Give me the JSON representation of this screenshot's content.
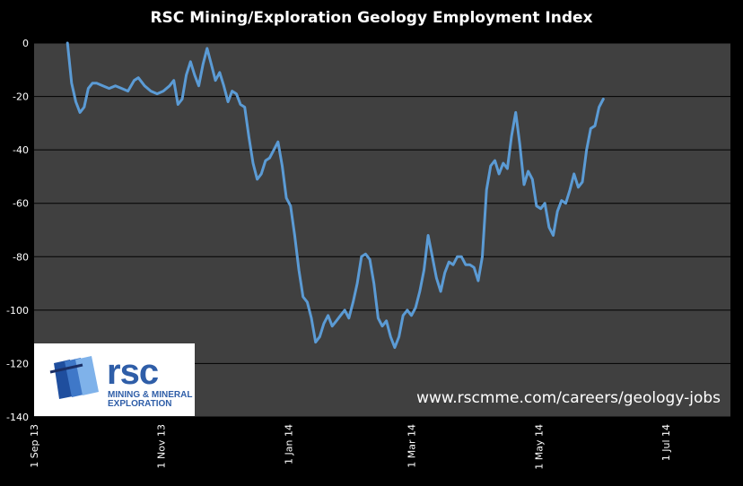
{
  "chart_data": {
    "type": "line",
    "title": "RSC Mining/Exploration Geology Employment Index",
    "xlabel": "",
    "ylabel": "",
    "ylim": [
      -140,
      0
    ],
    "yticks": [
      0,
      -20,
      -40,
      -60,
      -80,
      -100,
      -120,
      -140
    ],
    "xticks": [
      "1 Sep 13",
      "1 Nov 13",
      "1 Jan 14",
      "1 Mar 14",
      "1 May 14",
      "1 Jul 14"
    ],
    "xlim": [
      "2013-09-01",
      "2014-08-01"
    ],
    "grid": "horizontal",
    "line_color": "#5b9bd5",
    "series": [
      {
        "points": [
          [
            "2013-09-17",
            0
          ],
          [
            "2013-09-19",
            -15
          ],
          [
            "2013-09-21",
            -22
          ],
          [
            "2013-09-23",
            -26
          ],
          [
            "2013-09-25",
            -24
          ],
          [
            "2013-09-27",
            -17
          ],
          [
            "2013-09-29",
            -15
          ],
          [
            "2013-10-01",
            -15
          ],
          [
            "2013-10-04",
            -16
          ],
          [
            "2013-10-07",
            -17
          ],
          [
            "2013-10-10",
            -16
          ],
          [
            "2013-10-13",
            -17
          ],
          [
            "2013-10-16",
            -18
          ],
          [
            "2013-10-19",
            -14
          ],
          [
            "2013-10-21",
            -13
          ],
          [
            "2013-10-24",
            -16
          ],
          [
            "2013-10-27",
            -18
          ],
          [
            "2013-10-30",
            -19
          ],
          [
            "2013-11-02",
            -18
          ],
          [
            "2013-11-05",
            -16
          ],
          [
            "2013-11-07",
            -14
          ],
          [
            "2013-11-09",
            -23
          ],
          [
            "2013-11-11",
            -21
          ],
          [
            "2013-11-13",
            -12
          ],
          [
            "2013-11-15",
            -7
          ],
          [
            "2013-11-17",
            -12
          ],
          [
            "2013-11-19",
            -16
          ],
          [
            "2013-11-21",
            -8
          ],
          [
            "2013-11-23",
            -2
          ],
          [
            "2013-11-25",
            -8
          ],
          [
            "2013-11-27",
            -14
          ],
          [
            "2013-11-29",
            -11
          ],
          [
            "2013-12-01",
            -16
          ],
          [
            "2013-12-03",
            -22
          ],
          [
            "2013-12-05",
            -18
          ],
          [
            "2013-12-07",
            -19
          ],
          [
            "2013-12-09",
            -23
          ],
          [
            "2013-12-11",
            -24
          ],
          [
            "2013-12-13",
            -35
          ],
          [
            "2013-12-15",
            -45
          ],
          [
            "2013-12-17",
            -51
          ],
          [
            "2013-12-19",
            -49
          ],
          [
            "2013-12-21",
            -44
          ],
          [
            "2013-12-23",
            -43
          ],
          [
            "2013-12-25",
            -40
          ],
          [
            "2013-12-27",
            -37
          ],
          [
            "2013-12-29",
            -46
          ],
          [
            "2013-12-31",
            -58
          ],
          [
            "2014-01-02",
            -61
          ],
          [
            "2014-01-04",
            -72
          ],
          [
            "2014-01-06",
            -85
          ],
          [
            "2014-01-08",
            -95
          ],
          [
            "2014-01-10",
            -97
          ],
          [
            "2014-01-12",
            -103
          ],
          [
            "2014-01-14",
            -112
          ],
          [
            "2014-01-16",
            -110
          ],
          [
            "2014-01-18",
            -105
          ],
          [
            "2014-01-20",
            -102
          ],
          [
            "2014-01-22",
            -106
          ],
          [
            "2014-01-24",
            -104
          ],
          [
            "2014-01-26",
            -102
          ],
          [
            "2014-01-28",
            -100
          ],
          [
            "2014-01-30",
            -103
          ],
          [
            "2014-02-01",
            -97
          ],
          [
            "2014-02-03",
            -90
          ],
          [
            "2014-02-05",
            -80
          ],
          [
            "2014-02-07",
            -79
          ],
          [
            "2014-02-09",
            -81
          ],
          [
            "2014-02-11",
            -90
          ],
          [
            "2014-02-13",
            -103
          ],
          [
            "2014-02-15",
            -106
          ],
          [
            "2014-02-17",
            -104
          ],
          [
            "2014-02-19",
            -110
          ],
          [
            "2014-02-21",
            -114
          ],
          [
            "2014-02-23",
            -110
          ],
          [
            "2014-02-25",
            -102
          ],
          [
            "2014-02-27",
            -100
          ],
          [
            "2014-03-01",
            -102
          ],
          [
            "2014-03-03",
            -99
          ],
          [
            "2014-03-05",
            -93
          ],
          [
            "2014-03-07",
            -85
          ],
          [
            "2014-03-09",
            -72
          ],
          [
            "2014-03-11",
            -80
          ],
          [
            "2014-03-13",
            -88
          ],
          [
            "2014-03-15",
            -93
          ],
          [
            "2014-03-17",
            -86
          ],
          [
            "2014-03-19",
            -82
          ],
          [
            "2014-03-21",
            -83
          ],
          [
            "2014-03-23",
            -80
          ],
          [
            "2014-03-25",
            -80
          ],
          [
            "2014-03-27",
            -83
          ],
          [
            "2014-03-29",
            -83
          ],
          [
            "2014-03-31",
            -84
          ],
          [
            "2014-04-02",
            -89
          ],
          [
            "2014-04-04",
            -80
          ],
          [
            "2014-04-06",
            -55
          ],
          [
            "2014-04-08",
            -46
          ],
          [
            "2014-04-10",
            -44
          ],
          [
            "2014-04-12",
            -49
          ],
          [
            "2014-04-14",
            -45
          ],
          [
            "2014-04-16",
            -47
          ],
          [
            "2014-04-18",
            -35
          ],
          [
            "2014-04-20",
            -26
          ],
          [
            "2014-04-22",
            -38
          ],
          [
            "2014-04-24",
            -53
          ],
          [
            "2014-04-26",
            -48
          ],
          [
            "2014-04-28",
            -51
          ],
          [
            "2014-04-30",
            -61
          ],
          [
            "2014-05-02",
            -62
          ],
          [
            "2014-05-04",
            -60
          ],
          [
            "2014-05-06",
            -69
          ],
          [
            "2014-05-08",
            -72
          ],
          [
            "2014-05-10",
            -63
          ],
          [
            "2014-05-12",
            -59
          ],
          [
            "2014-05-14",
            -60
          ],
          [
            "2014-05-16",
            -55
          ],
          [
            "2014-05-18",
            -49
          ],
          [
            "2014-05-20",
            -54
          ],
          [
            "2014-05-22",
            -52
          ],
          [
            "2014-05-24",
            -40
          ],
          [
            "2014-05-26",
            -32
          ],
          [
            "2014-05-28",
            -31
          ],
          [
            "2014-05-30",
            -24
          ],
          [
            "2014-06-01",
            -21
          ]
        ]
      }
    ]
  },
  "logo": {
    "word": "rsc",
    "line1": "MINING & MINERAL",
    "line2": "EXPLORATION"
  },
  "watermark": "www.rscmme.com/careers/geology-jobs",
  "colors": {
    "plot_background": "#404040",
    "gridline": "#000000",
    "line": "#5b9bd5",
    "logo_blue": "#2f5ea8"
  }
}
